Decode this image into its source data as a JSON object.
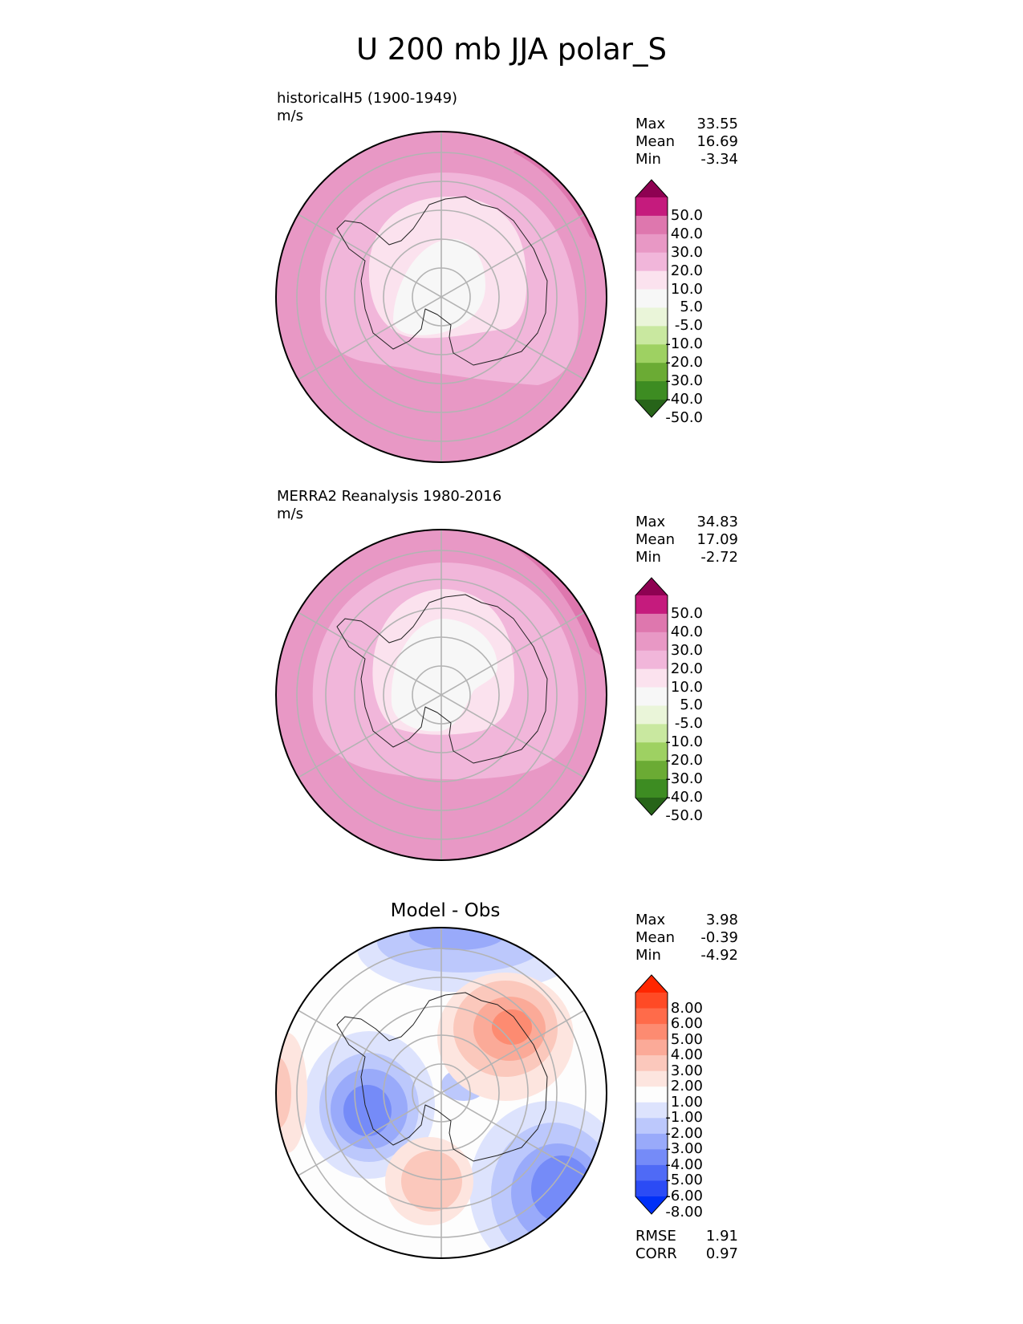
{
  "title": "U 200 mb JJA polar_S",
  "panels": [
    {
      "id": "model",
      "title": "historicalH5 (1900-1949)",
      "units": "m/s",
      "stats": {
        "labels": [
          "Max",
          "Mean",
          "Min"
        ],
        "values": [
          "33.55",
          "16.69",
          "-3.34"
        ]
      }
    },
    {
      "id": "obs",
      "title": "MERRA2 Reanalysis 1980-2016",
      "units": "m/s",
      "stats": {
        "labels": [
          "Max",
          "Mean",
          "Min"
        ],
        "values": [
          "34.83",
          "17.09",
          "-2.72"
        ]
      }
    },
    {
      "id": "diff",
      "title": "Model - Obs",
      "stats": {
        "labels": [
          "Max",
          "Mean",
          "Min"
        ],
        "values": [
          "3.98",
          "-0.39",
          "-4.92"
        ]
      },
      "metrics": {
        "labels": [
          "RMSE",
          "CORR"
        ],
        "values": [
          "1.91",
          "0.97"
        ]
      }
    }
  ],
  "colorbars": {
    "field": {
      "labels": [
        "50.0",
        "40.0",
        "30.0",
        "20.0",
        "10.0",
        "5.0",
        "-5.0",
        "-10.0",
        "-20.0",
        "-30.0",
        "-40.0",
        "-50.0"
      ],
      "colors": [
        "#8e0152",
        "#c51b7d",
        "#de77ae",
        "#e898c5",
        "#f1b6da",
        "#fbe2ee",
        "#f7f7f7",
        "#eaf5d9",
        "#c9e8a0",
        "#9ed162",
        "#6bab34",
        "#3d8c22",
        "#276419"
      ]
    },
    "diff": {
      "labels": [
        "8.00",
        "6.00",
        "5.00",
        "4.00",
        "3.00",
        "2.00",
        "1.00",
        "-1.00",
        "-2.00",
        "-3.00",
        "-4.00",
        "-5.00",
        "-6.00",
        "-8.00"
      ],
      "colors": [
        "#ff2600",
        "#ff4a25",
        "#ff6b4a",
        "#fd8b71",
        "#fbaa98",
        "#fbc8bc",
        "#fde5df",
        "#fdfdfd",
        "#dde3fd",
        "#bcc8fc",
        "#99aafa",
        "#758bf8",
        "#4f6af6",
        "#2b4bf5",
        "#0030f8"
      ]
    }
  },
  "chart_data": [
    {
      "type": "heatmap",
      "title": "historicalH5 (1900-1949)",
      "units": "m/s",
      "projection": "south polar stereographic",
      "max": 33.55,
      "mean": 16.69,
      "min": -3.34,
      "levels": [
        -50,
        -40,
        -30,
        -20,
        -10,
        -5,
        5,
        10,
        20,
        30,
        40,
        50
      ]
    },
    {
      "type": "heatmap",
      "title": "MERRA2 Reanalysis 1980-2016",
      "units": "m/s",
      "projection": "south polar stereographic",
      "max": 34.83,
      "mean": 17.09,
      "min": -2.72,
      "levels": [
        -50,
        -40,
        -30,
        -20,
        -10,
        -5,
        5,
        10,
        20,
        30,
        40,
        50
      ]
    },
    {
      "type": "heatmap",
      "title": "Model - Obs",
      "projection": "south polar stereographic",
      "max": 3.98,
      "mean": -0.39,
      "min": -4.92,
      "rmse": 1.91,
      "corr": 0.97,
      "levels": [
        -8,
        -6,
        -5,
        -4,
        -3,
        -2,
        -1,
        1,
        2,
        3,
        4,
        5,
        6,
        8
      ]
    }
  ]
}
